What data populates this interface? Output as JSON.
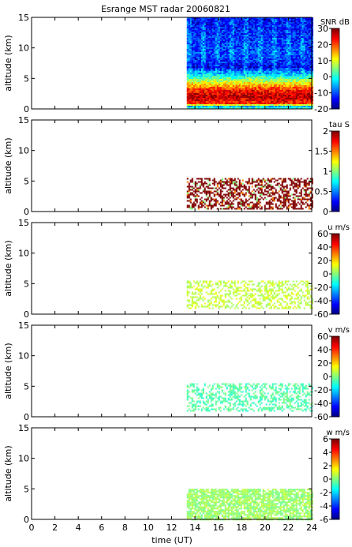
{
  "title": "Esrange MST radar 20060821",
  "xlabel": "time (UT)",
  "chart_data": [
    {
      "type": "heatmap",
      "quantity": "SNR",
      "colorbar_label": "SNR dB",
      "ylabel": "altitude (km)",
      "xlim": [
        0,
        24
      ],
      "ylim": [
        0,
        15
      ],
      "yticks": [
        0,
        5,
        10,
        15
      ],
      "clim": [
        -20,
        30
      ],
      "cticks": [
        -20,
        -10,
        0,
        10,
        20,
        30
      ],
      "data_start_time": 13.3,
      "profile": [
        {
          "alt": 0.0,
          "value": 5
        },
        {
          "alt": 0.5,
          "value": -5
        },
        {
          "alt": 1.0,
          "value": 22
        },
        {
          "alt": 2.0,
          "value": 27
        },
        {
          "alt": 3.0,
          "value": 24
        },
        {
          "alt": 4.0,
          "value": 15
        },
        {
          "alt": 5.0,
          "value": 5
        },
        {
          "alt": 6.0,
          "value": -5
        },
        {
          "alt": 7.0,
          "value": -15
        },
        {
          "alt": 9.0,
          "value": -10
        },
        {
          "alt": 12.0,
          "value": -12
        },
        {
          "alt": 15.0,
          "value": -14
        }
      ]
    },
    {
      "type": "heatmap",
      "quantity": "tau",
      "colorbar_label": "tau S",
      "ylabel": "altitude (km)",
      "xlim": [
        0,
        24
      ],
      "ylim": [
        0,
        15
      ],
      "yticks": [
        0,
        5,
        10,
        15
      ],
      "clim": [
        0,
        2
      ],
      "cticks": [
        0,
        0.5,
        1,
        1.5,
        2
      ],
      "data_start_time": 13.3,
      "data_altitude_range": [
        0.5,
        5.5
      ],
      "typical_value": 2
    },
    {
      "type": "heatmap",
      "quantity": "u",
      "colorbar_label": "u m/s",
      "ylabel": "altitude (km)",
      "xlim": [
        0,
        24
      ],
      "ylim": [
        0,
        15
      ],
      "yticks": [
        0,
        5,
        10,
        15
      ],
      "clim": [
        -60,
        60
      ],
      "cticks": [
        -60,
        -40,
        -20,
        0,
        20,
        40,
        60
      ],
      "data_start_time": 13.3,
      "data_altitude_range": [
        1.0,
        5.5
      ],
      "typical_value": 8
    },
    {
      "type": "heatmap",
      "quantity": "v",
      "colorbar_label": "v m/s",
      "ylabel": "altitude (km)",
      "xlim": [
        0,
        24
      ],
      "ylim": [
        0,
        15
      ],
      "yticks": [
        0,
        5,
        10,
        15
      ],
      "clim": [
        -60,
        60
      ],
      "cticks": [
        -60,
        -40,
        -20,
        0,
        20,
        40,
        60
      ],
      "data_start_time": 13.3,
      "data_altitude_range": [
        1.0,
        5.5
      ],
      "typical_value": -5
    },
    {
      "type": "heatmap",
      "quantity": "w",
      "colorbar_label": "w m/s",
      "ylabel": "altitude (km)",
      "xlim": [
        0,
        24
      ],
      "ylim": [
        0,
        15
      ],
      "yticks": [
        0,
        5,
        10,
        15
      ],
      "xticks": [
        0,
        2,
        4,
        6,
        8,
        10,
        12,
        14,
        16,
        18,
        20,
        22,
        24
      ],
      "clim": [
        -6,
        6
      ],
      "cticks": [
        -6,
        -4,
        -2,
        0,
        2,
        4,
        6
      ],
      "data_start_time": 13.3,
      "data_altitude_range": [
        0.0,
        5.0
      ],
      "typical_value": 0.3
    }
  ]
}
